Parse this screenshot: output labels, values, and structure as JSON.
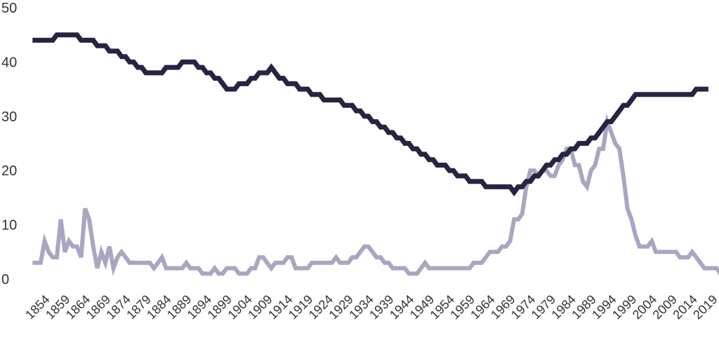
{
  "chart_data": {
    "type": "line",
    "title": "",
    "xlabel": "",
    "ylabel": "",
    "ylim": [
      0,
      50
    ],
    "xlim": [
      1852,
      2020
    ],
    "yticks": [
      0,
      10,
      20,
      30,
      40,
      50
    ],
    "xticks": [
      1854,
      1859,
      1864,
      1869,
      1874,
      1879,
      1884,
      1889,
      1894,
      1899,
      1904,
      1909,
      1914,
      1919,
      1924,
      1929,
      1934,
      1939,
      1944,
      1949,
      1954,
      1959,
      1964,
      1969,
      1974,
      1979,
      1984,
      1989,
      1994,
      1999,
      2004,
      2009,
      2014,
      2019
    ],
    "grid": false,
    "legend": "none",
    "series": [
      {
        "color": "#262540",
        "points": [
          [
            1852,
            44
          ],
          [
            1857,
            44
          ],
          [
            1858,
            45
          ],
          [
            1863,
            45
          ],
          [
            1864,
            44
          ],
          [
            1867,
            44
          ],
          [
            1868,
            43
          ],
          [
            1870,
            43
          ],
          [
            1871,
            42
          ],
          [
            1873,
            42
          ],
          [
            1874,
            41
          ],
          [
            1875,
            41
          ],
          [
            1876,
            40
          ],
          [
            1877,
            40
          ],
          [
            1878,
            39
          ],
          [
            1879,
            39
          ],
          [
            1880,
            38
          ],
          [
            1884,
            38
          ],
          [
            1885,
            39
          ],
          [
            1888,
            39
          ],
          [
            1889,
            40
          ],
          [
            1892,
            40
          ],
          [
            1893,
            39
          ],
          [
            1894,
            39
          ],
          [
            1895,
            38
          ],
          [
            1896,
            38
          ],
          [
            1897,
            37
          ],
          [
            1898,
            37
          ],
          [
            1899,
            36
          ],
          [
            1900,
            35
          ],
          [
            1902,
            35
          ],
          [
            1903,
            36
          ],
          [
            1905,
            36
          ],
          [
            1906,
            37
          ],
          [
            1907,
            37
          ],
          [
            1908,
            38
          ],
          [
            1910,
            38
          ],
          [
            1911,
            39
          ],
          [
            1913,
            37
          ],
          [
            1914,
            37
          ],
          [
            1915,
            36
          ],
          [
            1917,
            36
          ],
          [
            1918,
            35
          ],
          [
            1920,
            35
          ],
          [
            1921,
            34
          ],
          [
            1923,
            34
          ],
          [
            1924,
            33
          ],
          [
            1928,
            33
          ],
          [
            1929,
            32
          ],
          [
            1931,
            32
          ],
          [
            1932,
            31
          ],
          [
            1933,
            31
          ],
          [
            1934,
            30
          ],
          [
            1935,
            30
          ],
          [
            1936,
            29
          ],
          [
            1937,
            29
          ],
          [
            1938,
            28
          ],
          [
            1939,
            28
          ],
          [
            1940,
            27
          ],
          [
            1941,
            27
          ],
          [
            1942,
            26
          ],
          [
            1943,
            26
          ],
          [
            1944,
            25
          ],
          [
            1945,
            25
          ],
          [
            1946,
            24
          ],
          [
            1947,
            24
          ],
          [
            1948,
            23
          ],
          [
            1949,
            23
          ],
          [
            1950,
            22
          ],
          [
            1951,
            22
          ],
          [
            1952,
            21
          ],
          [
            1954,
            21
          ],
          [
            1955,
            20
          ],
          [
            1956,
            20
          ],
          [
            1957,
            19
          ],
          [
            1959,
            19
          ],
          [
            1960,
            18
          ],
          [
            1963,
            18
          ],
          [
            1964,
            17
          ],
          [
            1970,
            17
          ],
          [
            1971,
            16
          ],
          [
            1972,
            17
          ],
          [
            1973,
            17
          ],
          [
            1974,
            18
          ],
          [
            1975,
            18
          ],
          [
            1976,
            19
          ],
          [
            1977,
            19
          ],
          [
            1978,
            20
          ],
          [
            1979,
            21
          ],
          [
            1980,
            21
          ],
          [
            1981,
            22
          ],
          [
            1982,
            22
          ],
          [
            1983,
            23
          ],
          [
            1984,
            23
          ],
          [
            1985,
            24
          ],
          [
            1986,
            24
          ],
          [
            1987,
            25
          ],
          [
            1989,
            25
          ],
          [
            1990,
            26
          ],
          [
            1991,
            26
          ],
          [
            1992,
            27
          ],
          [
            1993,
            28
          ],
          [
            1994,
            29
          ],
          [
            1995,
            29
          ],
          [
            1996,
            30
          ],
          [
            1997,
            31
          ],
          [
            1998,
            32
          ],
          [
            1999,
            32
          ],
          [
            2000,
            33
          ],
          [
            2001,
            34
          ],
          [
            2015,
            34
          ],
          [
            2016,
            35
          ],
          [
            2019,
            35
          ]
        ]
      },
      {
        "color": "#a9a6c2",
        "points": [
          [
            1852,
            3
          ],
          [
            1854,
            3
          ],
          [
            1855,
            7
          ],
          [
            1856,
            5
          ],
          [
            1857,
            4
          ],
          [
            1858,
            4
          ],
          [
            1859,
            11
          ],
          [
            1860,
            5
          ],
          [
            1861,
            7
          ],
          [
            1862,
            6
          ],
          [
            1863,
            6
          ],
          [
            1864,
            4
          ],
          [
            1865,
            13
          ],
          [
            1866,
            11
          ],
          [
            1867,
            6
          ],
          [
            1868,
            2
          ],
          [
            1869,
            5
          ],
          [
            1870,
            3
          ],
          [
            1871,
            6
          ],
          [
            1872,
            2
          ],
          [
            1873,
            4
          ],
          [
            1874,
            5
          ],
          [
            1875,
            4
          ],
          [
            1876,
            3
          ],
          [
            1881,
            3
          ],
          [
            1882,
            2
          ],
          [
            1883,
            3
          ],
          [
            1884,
            4
          ],
          [
            1885,
            2
          ],
          [
            1889,
            2
          ],
          [
            1890,
            3
          ],
          [
            1891,
            2
          ],
          [
            1893,
            2
          ],
          [
            1894,
            1
          ],
          [
            1896,
            1
          ],
          [
            1897,
            2
          ],
          [
            1898,
            1
          ],
          [
            1899,
            1
          ],
          [
            1900,
            2
          ],
          [
            1902,
            2
          ],
          [
            1903,
            1
          ],
          [
            1905,
            1
          ],
          [
            1906,
            2
          ],
          [
            1907,
            2
          ],
          [
            1908,
            4
          ],
          [
            1909,
            4
          ],
          [
            1910,
            3
          ],
          [
            1911,
            2
          ],
          [
            1912,
            3
          ],
          [
            1914,
            3
          ],
          [
            1915,
            4
          ],
          [
            1916,
            4
          ],
          [
            1917,
            2
          ],
          [
            1920,
            2
          ],
          [
            1921,
            3
          ],
          [
            1926,
            3
          ],
          [
            1927,
            4
          ],
          [
            1928,
            3
          ],
          [
            1930,
            3
          ],
          [
            1931,
            4
          ],
          [
            1932,
            4
          ],
          [
            1933,
            5
          ],
          [
            1934,
            6
          ],
          [
            1935,
            6
          ],
          [
            1936,
            5
          ],
          [
            1937,
            4
          ],
          [
            1938,
            4
          ],
          [
            1939,
            3
          ],
          [
            1940,
            3
          ],
          [
            1941,
            2
          ],
          [
            1944,
            2
          ],
          [
            1945,
            1
          ],
          [
            1947,
            1
          ],
          [
            1948,
            2
          ],
          [
            1949,
            3
          ],
          [
            1950,
            2
          ],
          [
            1960,
            2
          ],
          [
            1961,
            3
          ],
          [
            1963,
            3
          ],
          [
            1964,
            4
          ],
          [
            1965,
            5
          ],
          [
            1967,
            5
          ],
          [
            1968,
            6
          ],
          [
            1969,
            6
          ],
          [
            1970,
            7
          ],
          [
            1971,
            11
          ],
          [
            1972,
            11
          ],
          [
            1973,
            12
          ],
          [
            1974,
            17
          ],
          [
            1975,
            20
          ],
          [
            1976,
            20
          ],
          [
            1977,
            19
          ],
          [
            1978,
            20
          ],
          [
            1979,
            20
          ],
          [
            1980,
            19
          ],
          [
            1981,
            19
          ],
          [
            1982,
            21
          ],
          [
            1983,
            22
          ],
          [
            1984,
            24
          ],
          [
            1985,
            24
          ],
          [
            1986,
            21
          ],
          [
            1987,
            21
          ],
          [
            1988,
            18
          ],
          [
            1989,
            17
          ],
          [
            1990,
            20
          ],
          [
            1991,
            21
          ],
          [
            1992,
            24
          ],
          [
            1993,
            24
          ],
          [
            1994,
            29
          ],
          [
            1995,
            27
          ],
          [
            1996,
            25
          ],
          [
            1997,
            24
          ],
          [
            1998,
            19
          ],
          [
            1999,
            13
          ],
          [
            2000,
            11
          ],
          [
            2001,
            8
          ],
          [
            2002,
            6
          ],
          [
            2004,
            6
          ],
          [
            2005,
            7
          ],
          [
            2006,
            5
          ],
          [
            2011,
            5
          ],
          [
            2012,
            4
          ],
          [
            2014,
            4
          ],
          [
            2015,
            5
          ],
          [
            2016,
            4
          ],
          [
            2017,
            3
          ],
          [
            2018,
            2
          ],
          [
            2021,
            2
          ],
          [
            2022,
            1
          ]
        ]
      }
    ]
  }
}
